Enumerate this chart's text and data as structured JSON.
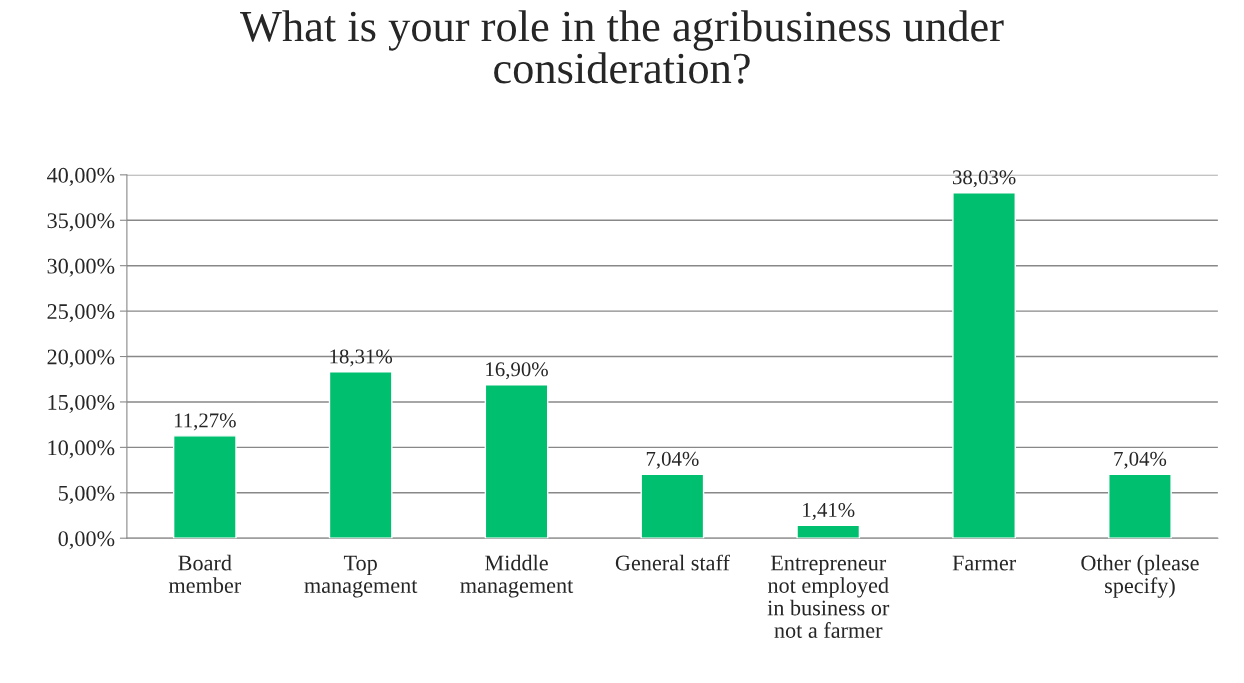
{
  "chart_data": {
    "type": "bar",
    "title": "What is your role in the agribusiness under\nconsideration?",
    "categories": [
      "Board\nmember",
      "Top\nmanagement",
      "Middle\nmanagement",
      "General staff",
      "Entrepreneur\nnot employed\nin business or\nnot a farmer",
      "Farmer",
      "Other (please\nspecify)"
    ],
    "values": [
      11.27,
      18.31,
      16.9,
      7.04,
      1.41,
      38.03,
      7.04
    ],
    "value_labels": [
      "11,27%",
      "18,31%",
      "16,90%",
      "7,04%",
      "1,41%",
      "38,03%",
      "7,04%"
    ],
    "color": "#00bf6f",
    "ylim": [
      0,
      40
    ],
    "yticks": [
      {
        "value": 0,
        "label": "0,00%"
      },
      {
        "value": 5,
        "label": "5,00%"
      },
      {
        "value": 10,
        "label": "10,00%"
      },
      {
        "value": 15,
        "label": "15,00%"
      },
      {
        "value": 20,
        "label": "20,00%"
      },
      {
        "value": 25,
        "label": "25,00%"
      },
      {
        "value": 30,
        "label": "30,00%"
      },
      {
        "value": 35,
        "label": "35,00%"
      },
      {
        "value": 40,
        "label": "40,00%"
      }
    ],
    "grid": "y",
    "legend": false
  }
}
